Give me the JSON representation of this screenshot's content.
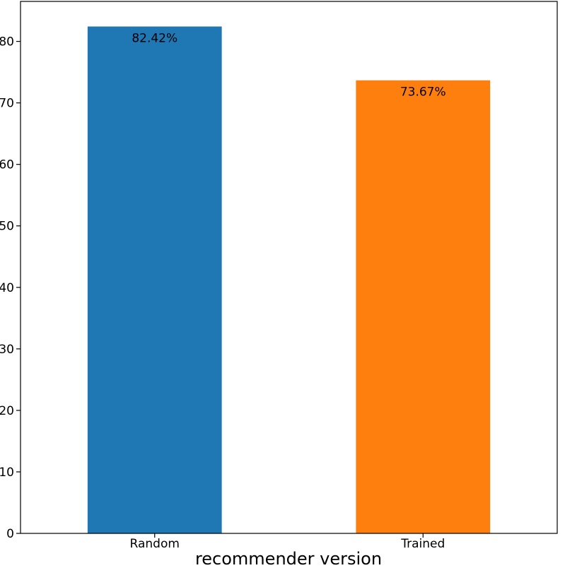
{
  "chart_data": {
    "type": "bar",
    "categories": [
      "Random",
      "Trained"
    ],
    "values": [
      82.42,
      73.67
    ],
    "data_labels": [
      "82.42%",
      "73.67%"
    ],
    "colors": [
      "#1f77b4",
      "#ff7f0e"
    ],
    "title": "",
    "xlabel": "recommender version",
    "ylabel": "",
    "ylim": [
      0,
      86.5
    ],
    "yticks": [
      0,
      10,
      20,
      30,
      40,
      50,
      60,
      70,
      80
    ],
    "grid": false,
    "legend": "none"
  }
}
